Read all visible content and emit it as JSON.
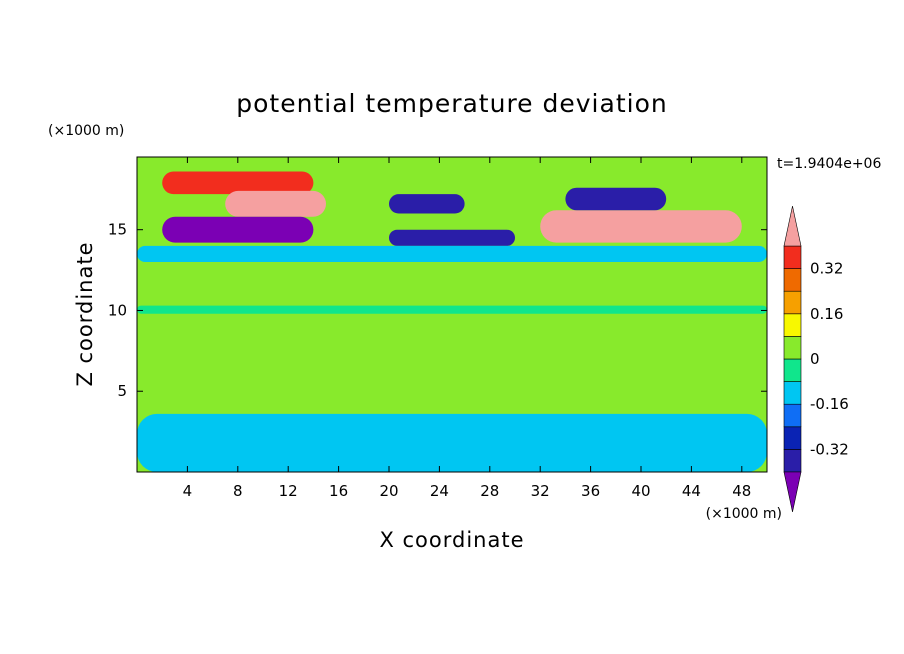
{
  "chart_data": {
    "type": "heatmap",
    "title": "potential temperature deviation",
    "xlabel": "X coordinate",
    "ylabel": "Z coordinate",
    "x_units": "(×1000 m)",
    "y_units": "(×1000 m)",
    "time_label": "t=1.9404e+06",
    "xlim": [
      0,
      50
    ],
    "ylim": [
      0,
      19.5
    ],
    "x_ticks": [
      4,
      8,
      12,
      16,
      20,
      24,
      28,
      32,
      36,
      40,
      44,
      48
    ],
    "y_ticks": [
      5,
      10,
      15
    ],
    "colorbar": {
      "levels": [
        -0.4,
        -0.32,
        -0.24,
        -0.16,
        -0.08,
        0,
        0.08,
        0.16,
        0.24,
        0.32,
        0.4
      ],
      "colors": [
        "#7b00b4",
        "#2a1ea8",
        "#0a23b4",
        "#0f6ef5",
        "#00c6f2",
        "#10e68c",
        "#88ea2c",
        "#f8f800",
        "#f6a000",
        "#ef6a00",
        "#f22d1e",
        "#f5a0a0"
      ],
      "tick_labels": [
        "0.32",
        "0.16",
        "0",
        "-0.16",
        "-0.32"
      ],
      "tick_values": [
        0.32,
        0.16,
        0,
        -0.16,
        -0.32
      ]
    },
    "features": [
      {
        "x": [
          2,
          14
        ],
        "z": [
          17.2,
          18.6
        ],
        "value": 0.34
      },
      {
        "x": [
          7,
          15
        ],
        "z": [
          15.8,
          17.4
        ],
        "value": 0.45
      },
      {
        "x": [
          2,
          14
        ],
        "z": [
          14.2,
          15.8
        ],
        "value": -0.45
      },
      {
        "x": [
          32,
          48
        ],
        "z": [
          14.2,
          16.2
        ],
        "value": 0.45
      },
      {
        "x": [
          20,
          26
        ],
        "z": [
          16.0,
          17.2
        ],
        "value": -0.35
      },
      {
        "x": [
          34,
          42
        ],
        "z": [
          16.2,
          17.6
        ],
        "value": -0.4
      },
      {
        "x": [
          20,
          30
        ],
        "z": [
          14.0,
          15.0
        ],
        "value": -0.35
      },
      {
        "x": [
          0,
          50
        ],
        "z": [
          13.0,
          14.0
        ],
        "value": -0.12
      },
      {
        "x": [
          0,
          50
        ],
        "z": [
          9.8,
          10.3
        ],
        "value": -0.08
      },
      {
        "x": [
          0,
          50
        ],
        "z": [
          0.0,
          3.6
        ],
        "value": -0.1
      }
    ]
  }
}
